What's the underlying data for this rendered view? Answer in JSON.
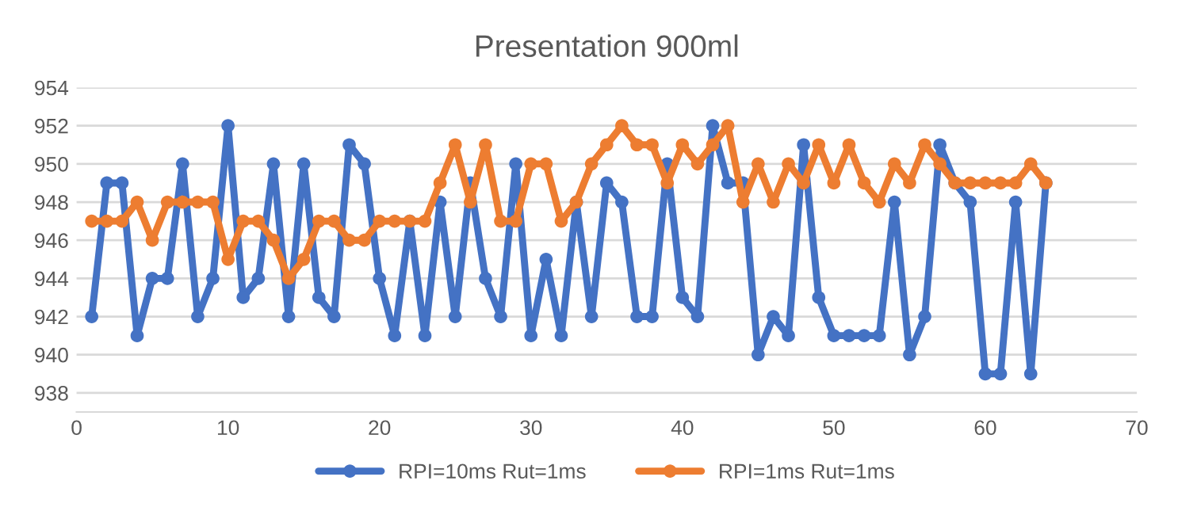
{
  "chart_data": {
    "type": "line",
    "title": "Presentation 900ml",
    "x": [
      1,
      2,
      3,
      4,
      5,
      6,
      7,
      8,
      9,
      10,
      11,
      12,
      13,
      14,
      15,
      16,
      17,
      18,
      19,
      20,
      21,
      22,
      23,
      24,
      25,
      26,
      27,
      28,
      29,
      30,
      31,
      32,
      33,
      34,
      35,
      36,
      37,
      38,
      39,
      40,
      41,
      42,
      43,
      44,
      45,
      46,
      47,
      48,
      49,
      50,
      51,
      52,
      53,
      54,
      55,
      56,
      57,
      58,
      59,
      60,
      61,
      62,
      63,
      64
    ],
    "series": [
      {
        "name": "RPI=10ms Rut=1ms",
        "color": "#4472c4",
        "values": [
          942,
          949,
          949,
          941,
          944,
          944,
          950,
          942,
          944,
          952,
          943,
          944,
          950,
          942,
          950,
          943,
          942,
          951,
          950,
          944,
          941,
          947,
          941,
          948,
          942,
          949,
          944,
          942,
          950,
          941,
          945,
          941,
          948,
          942,
          949,
          948,
          942,
          942,
          950,
          943,
          942,
          952,
          949,
          949,
          940,
          942,
          941,
          951,
          943,
          941,
          941,
          941,
          941,
          948,
          940,
          942,
          951,
          949,
          948,
          939,
          939,
          948,
          939,
          949
        ]
      },
      {
        "name": "RPI=1ms Rut=1ms",
        "color": "#ed7d31",
        "values": [
          947,
          947,
          947,
          948,
          946,
          948,
          948,
          948,
          948,
          945,
          947,
          947,
          946,
          944,
          945,
          947,
          947,
          946,
          946,
          947,
          947,
          947,
          947,
          949,
          951,
          948,
          951,
          947,
          947,
          950,
          950,
          947,
          948,
          950,
          951,
          952,
          951,
          951,
          949,
          951,
          950,
          951,
          952,
          948,
          950,
          948,
          950,
          949,
          951,
          949,
          951,
          949,
          948,
          950,
          949,
          951,
          950,
          949,
          949,
          949,
          949,
          949,
          950,
          949
        ]
      }
    ],
    "xlim": [
      0,
      70
    ],
    "xticks": [
      0,
      10,
      20,
      30,
      40,
      50,
      60,
      70
    ],
    "ylim": [
      937,
      954
    ],
    "yticks": [
      938,
      940,
      942,
      944,
      946,
      948,
      950,
      952,
      954
    ],
    "grid": "y",
    "legend": "bottom",
    "marker": "circle",
    "line_style": "solid"
  }
}
